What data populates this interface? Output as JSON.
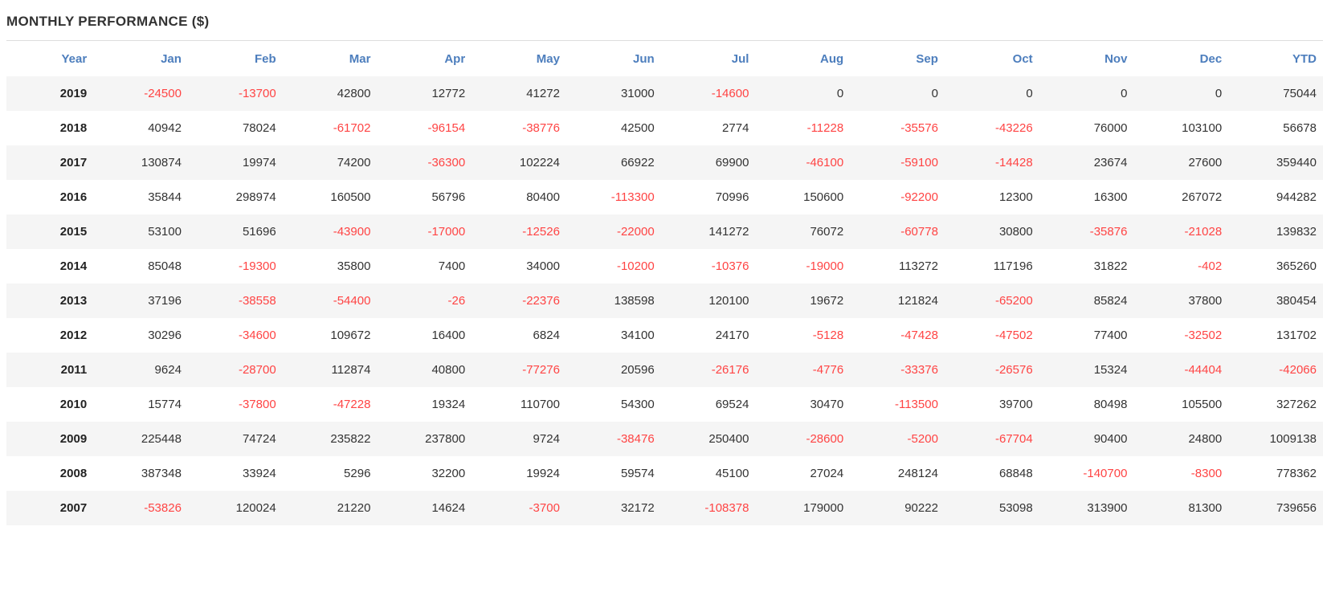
{
  "page": {
    "title": "MONTHLY PERFORMANCE ($)"
  },
  "colors": {
    "title_text": "#333333",
    "divider": "#dddddd",
    "header_text": "#4d7ebd",
    "positive": "#333333",
    "negative": "#ff4444",
    "year_text": "#222222",
    "stripe": "#f5f5f5",
    "page_bg": "#ffffff"
  },
  "chart_data": {
    "type": "table",
    "title": "MONTHLY PERFORMANCE ($)",
    "layout": {
      "zebra_striping": true,
      "negative_values_red": true,
      "values_right_aligned": true
    },
    "columns": [
      "Year",
      "Jan",
      "Feb",
      "Mar",
      "Apr",
      "May",
      "Jun",
      "Jul",
      "Aug",
      "Sep",
      "Oct",
      "Nov",
      "Dec",
      "YTD"
    ],
    "rows": [
      {
        "year": "2019",
        "values": [
          -24500,
          -13700,
          42800,
          12772,
          41272,
          31000,
          -14600,
          0,
          0,
          0,
          0,
          0,
          75044
        ]
      },
      {
        "year": "2018",
        "values": [
          40942,
          78024,
          -61702,
          -96154,
          -38776,
          42500,
          2774,
          -11228,
          -35576,
          -43226,
          76000,
          103100,
          56678
        ]
      },
      {
        "year": "2017",
        "values": [
          130874,
          19974,
          74200,
          -36300,
          102224,
          66922,
          69900,
          -46100,
          -59100,
          -14428,
          23674,
          27600,
          359440
        ]
      },
      {
        "year": "2016",
        "values": [
          35844,
          298974,
          160500,
          56796,
          80400,
          -113300,
          70996,
          150600,
          -92200,
          12300,
          16300,
          267072,
          944282
        ]
      },
      {
        "year": "2015",
        "values": [
          53100,
          51696,
          -43900,
          -17000,
          -12526,
          -22000,
          141272,
          76072,
          -60778,
          30800,
          -35876,
          -21028,
          139832
        ]
      },
      {
        "year": "2014",
        "values": [
          85048,
          -19300,
          35800,
          7400,
          34000,
          -10200,
          -10376,
          -19000,
          113272,
          117196,
          31822,
          -402,
          365260
        ]
      },
      {
        "year": "2013",
        "values": [
          37196,
          -38558,
          -54400,
          -26,
          -22376,
          138598,
          120100,
          19672,
          121824,
          -65200,
          85824,
          37800,
          380454
        ]
      },
      {
        "year": "2012",
        "values": [
          30296,
          -34600,
          109672,
          16400,
          6824,
          34100,
          24170,
          -5128,
          -47428,
          -47502,
          77400,
          -32502,
          131702
        ]
      },
      {
        "year": "2011",
        "values": [
          9624,
          -28700,
          112874,
          40800,
          -77276,
          20596,
          -26176,
          -4776,
          -33376,
          -26576,
          15324,
          -44404,
          -42066
        ]
      },
      {
        "year": "2010",
        "values": [
          15774,
          -37800,
          -47228,
          19324,
          110700,
          54300,
          69524,
          30470,
          -113500,
          39700,
          80498,
          105500,
          327262
        ]
      },
      {
        "year": "2009",
        "values": [
          225448,
          74724,
          235822,
          237800,
          9724,
          -38476,
          250400,
          -28600,
          -5200,
          -67704,
          90400,
          24800,
          1009138
        ]
      },
      {
        "year": "2008",
        "values": [
          387348,
          33924,
          5296,
          32200,
          19924,
          59574,
          45100,
          27024,
          248124,
          68848,
          -140700,
          -8300,
          778362
        ]
      },
      {
        "year": "2007",
        "values": [
          -53826,
          120024,
          21220,
          14624,
          -3700,
          32172,
          -108378,
          179000,
          90222,
          53098,
          313900,
          81300,
          739656
        ]
      }
    ]
  }
}
